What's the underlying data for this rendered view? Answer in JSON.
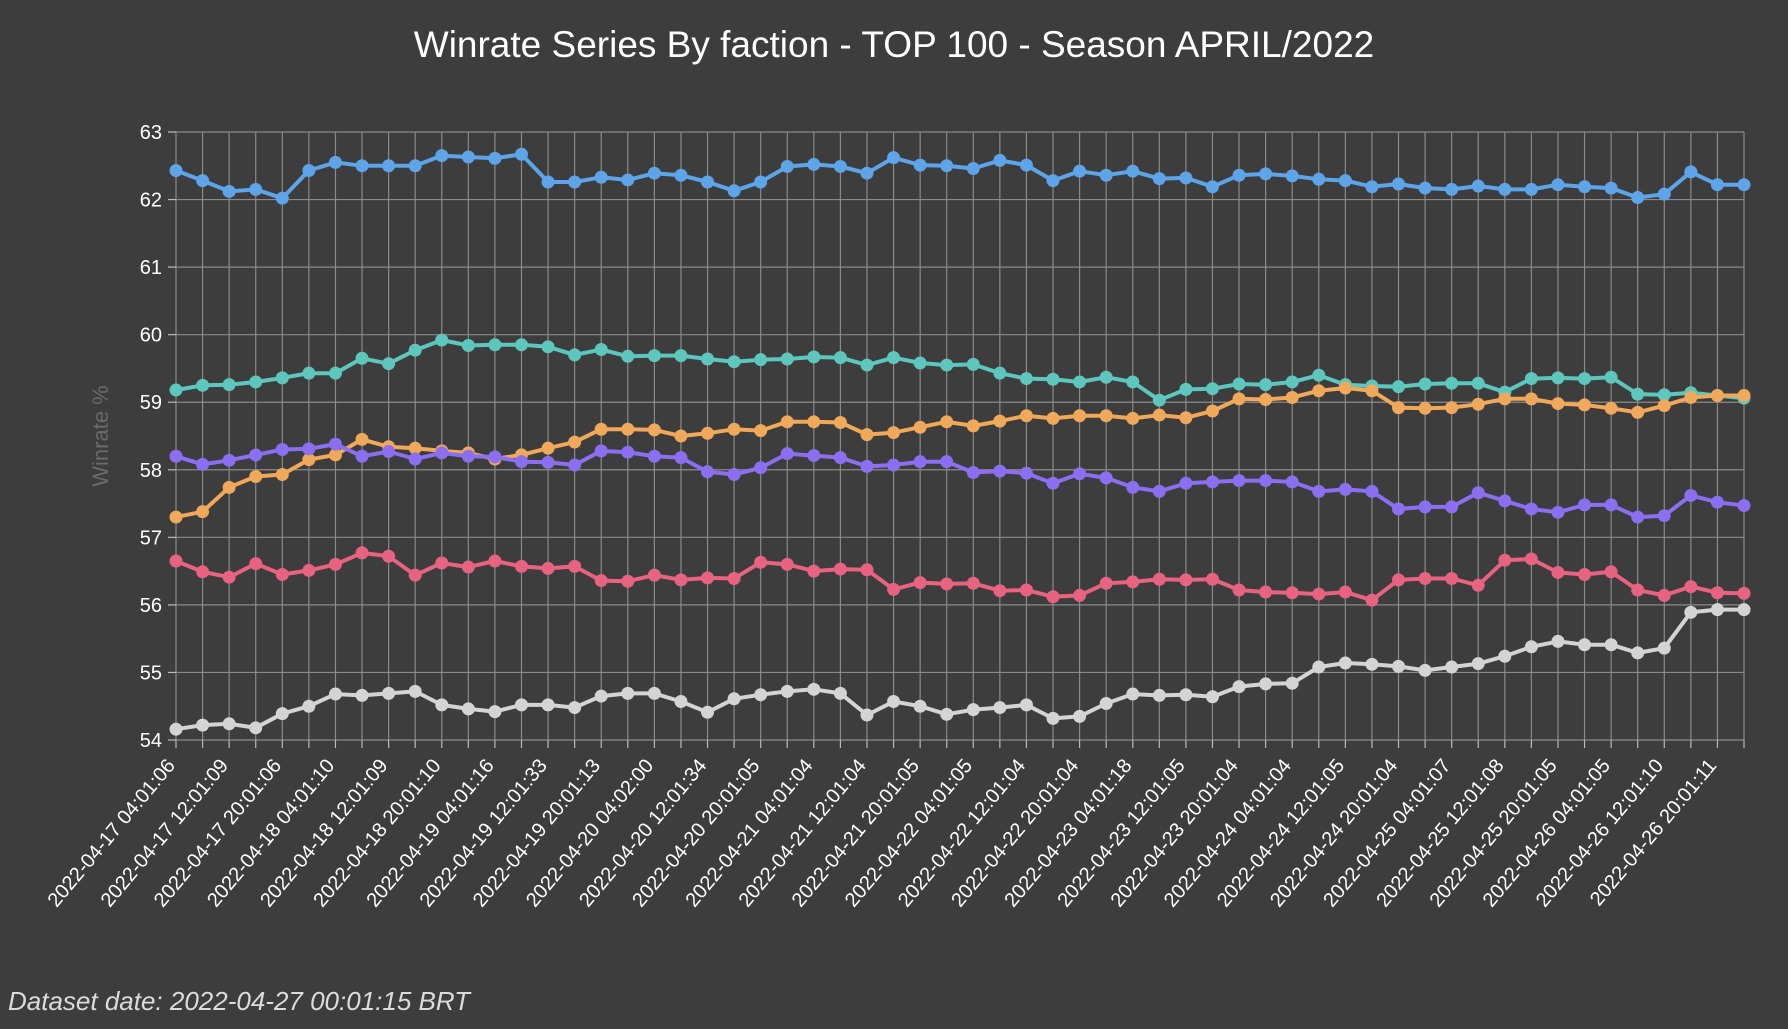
{
  "chart_data": {
    "type": "line",
    "title": "Winrate Series By faction - TOP 100 - Season APRIL/2022",
    "xlabel": "",
    "ylabel": "Winrate %",
    "ylim": [
      54,
      63
    ],
    "yticks": [
      54,
      55,
      56,
      57,
      58,
      59,
      60,
      61,
      62,
      63
    ],
    "grid": true,
    "point_count": 60,
    "x_tick_labels": [
      "2022-04-17 04:01:06",
      "2022-04-17 12:01:09",
      "2022-04-17 20:01:06",
      "2022-04-18 04:01:10",
      "2022-04-18 12:01:09",
      "2022-04-18 20:01:10",
      "2022-04-19 04:01:16",
      "2022-04-19 12:01:33",
      "2022-04-19 20:01:13",
      "2022-04-20 04:02:00",
      "2022-04-20 12:01:34",
      "2022-04-20 20:01:05",
      "2022-04-21 04:01:04",
      "2022-04-21 12:01:04",
      "2022-04-21 20:01:05",
      "2022-04-22 04:01:05",
      "2022-04-22 12:01:04",
      "2022-04-22 20:01:04",
      "2022-04-23 04:01:18",
      "2022-04-23 12:01:05",
      "2022-04-23 20:01:04",
      "2022-04-24 04:01:04",
      "2022-04-24 12:01:05",
      "2022-04-24 20:01:04",
      "2022-04-25 04:01:07",
      "2022-04-25 12:01:08",
      "2022-04-25 20:01:05",
      "2022-04-26 04:01:05",
      "2022-04-26 12:01:10",
      "2022-04-26 20:01:11"
    ],
    "series": [
      {
        "name": "blue",
        "color": "#5da5e8",
        "values": [
          62.43,
          62.28,
          62.12,
          62.15,
          62.02,
          62.43,
          62.55,
          62.5,
          62.5,
          62.5,
          62.65,
          62.63,
          62.61,
          62.67,
          62.26,
          62.26,
          62.33,
          62.29,
          62.39,
          62.36,
          62.26,
          62.13,
          62.26,
          62.49,
          62.52,
          62.49,
          62.39,
          62.62,
          62.51,
          62.5,
          62.46,
          62.58,
          62.51,
          62.28,
          62.42,
          62.36,
          62.42,
          62.31,
          62.32,
          62.19,
          62.36,
          62.38,
          62.35,
          62.3,
          62.28,
          62.19,
          62.23,
          62.17,
          62.15,
          62.2,
          62.15,
          62.15,
          62.22,
          62.19,
          62.17,
          62.03,
          62.08,
          62.41,
          62.22,
          62.22
        ]
      },
      {
        "name": "teal",
        "color": "#5ec7bd",
        "values": [
          59.18,
          59.25,
          59.26,
          59.3,
          59.36,
          59.43,
          59.43,
          59.65,
          59.57,
          59.77,
          59.92,
          59.84,
          59.85,
          59.85,
          59.82,
          59.7,
          59.78,
          59.68,
          59.69,
          59.69,
          59.64,
          59.6,
          59.63,
          59.64,
          59.67,
          59.66,
          59.55,
          59.66,
          59.58,
          59.55,
          59.56,
          59.43,
          59.35,
          59.34,
          59.3,
          59.37,
          59.3,
          59.03,
          59.19,
          59.2,
          59.27,
          59.26,
          59.3,
          59.4,
          59.26,
          59.24,
          59.23,
          59.27,
          59.28,
          59.28,
          59.15,
          59.35,
          59.36,
          59.35,
          59.37,
          59.12,
          59.11,
          59.14,
          59.1,
          59.06
        ]
      },
      {
        "name": "orange",
        "color": "#f0a85a",
        "values": [
          57.3,
          57.38,
          57.74,
          57.9,
          57.93,
          58.15,
          58.22,
          58.45,
          58.34,
          58.32,
          58.28,
          58.25,
          58.16,
          58.22,
          58.32,
          58.41,
          58.6,
          58.6,
          58.59,
          58.5,
          58.54,
          58.6,
          58.58,
          58.71,
          58.71,
          58.7,
          58.52,
          58.55,
          58.63,
          58.71,
          58.65,
          58.72,
          58.8,
          58.76,
          58.8,
          58.8,
          58.76,
          58.81,
          58.77,
          58.87,
          59.05,
          59.04,
          59.07,
          59.17,
          59.21,
          59.17,
          58.92,
          58.91,
          58.92,
          58.97,
          59.05,
          59.05,
          58.98,
          58.96,
          58.91,
          58.85,
          58.95,
          59.07,
          59.1,
          59.1
        ]
      },
      {
        "name": "purple",
        "color": "#8c6ff0",
        "values": [
          58.2,
          58.08,
          58.14,
          58.22,
          58.3,
          58.31,
          58.38,
          58.2,
          58.27,
          58.16,
          58.25,
          58.2,
          58.19,
          58.12,
          58.11,
          58.07,
          58.28,
          58.26,
          58.2,
          58.18,
          57.97,
          57.93,
          58.03,
          58.24,
          58.21,
          58.18,
          58.05,
          58.07,
          58.12,
          58.12,
          57.96,
          57.98,
          57.95,
          57.8,
          57.94,
          57.88,
          57.74,
          57.68,
          57.8,
          57.82,
          57.84,
          57.84,
          57.82,
          57.68,
          57.71,
          57.68,
          57.42,
          57.45,
          57.45,
          57.66,
          57.54,
          57.42,
          57.37,
          57.48,
          57.48,
          57.3,
          57.32,
          57.62,
          57.52,
          57.47
        ]
      },
      {
        "name": "pink",
        "color": "#e8637f",
        "values": [
          56.65,
          56.49,
          56.41,
          56.61,
          56.45,
          56.51,
          56.6,
          56.77,
          56.72,
          56.44,
          56.62,
          56.56,
          56.65,
          56.57,
          56.54,
          56.57,
          56.36,
          56.35,
          56.44,
          56.37,
          56.4,
          56.39,
          56.63,
          56.6,
          56.5,
          56.53,
          56.52,
          56.23,
          56.33,
          56.31,
          56.32,
          56.21,
          56.22,
          56.12,
          56.14,
          56.32,
          56.34,
          56.38,
          56.37,
          56.38,
          56.22,
          56.19,
          56.18,
          56.16,
          56.19,
          56.07,
          56.37,
          56.39,
          56.39,
          56.29,
          56.66,
          56.68,
          56.48,
          56.45,
          56.49,
          56.22,
          56.14,
          56.27,
          56.18,
          56.17
        ]
      },
      {
        "name": "gray",
        "color": "#d4d4d4",
        "values": [
          54.16,
          54.22,
          54.24,
          54.18,
          54.39,
          54.5,
          54.68,
          54.66,
          54.69,
          54.72,
          54.52,
          54.46,
          54.42,
          54.52,
          54.52,
          54.48,
          54.65,
          54.69,
          54.69,
          54.57,
          54.41,
          54.61,
          54.67,
          54.72,
          54.75,
          54.69,
          54.37,
          54.57,
          54.5,
          54.38,
          54.45,
          54.48,
          54.52,
          54.32,
          54.35,
          54.54,
          54.68,
          54.66,
          54.67,
          54.64,
          54.79,
          54.83,
          54.84,
          55.08,
          55.14,
          55.12,
          55.09,
          55.03,
          55.08,
          55.13,
          55.24,
          55.38,
          55.46,
          55.41,
          55.41,
          55.29,
          55.36,
          55.89,
          55.93,
          55.93
        ]
      }
    ]
  },
  "footer": {
    "dataset_date": "Dataset date: 2022-04-27 00:01:15 BRT"
  }
}
